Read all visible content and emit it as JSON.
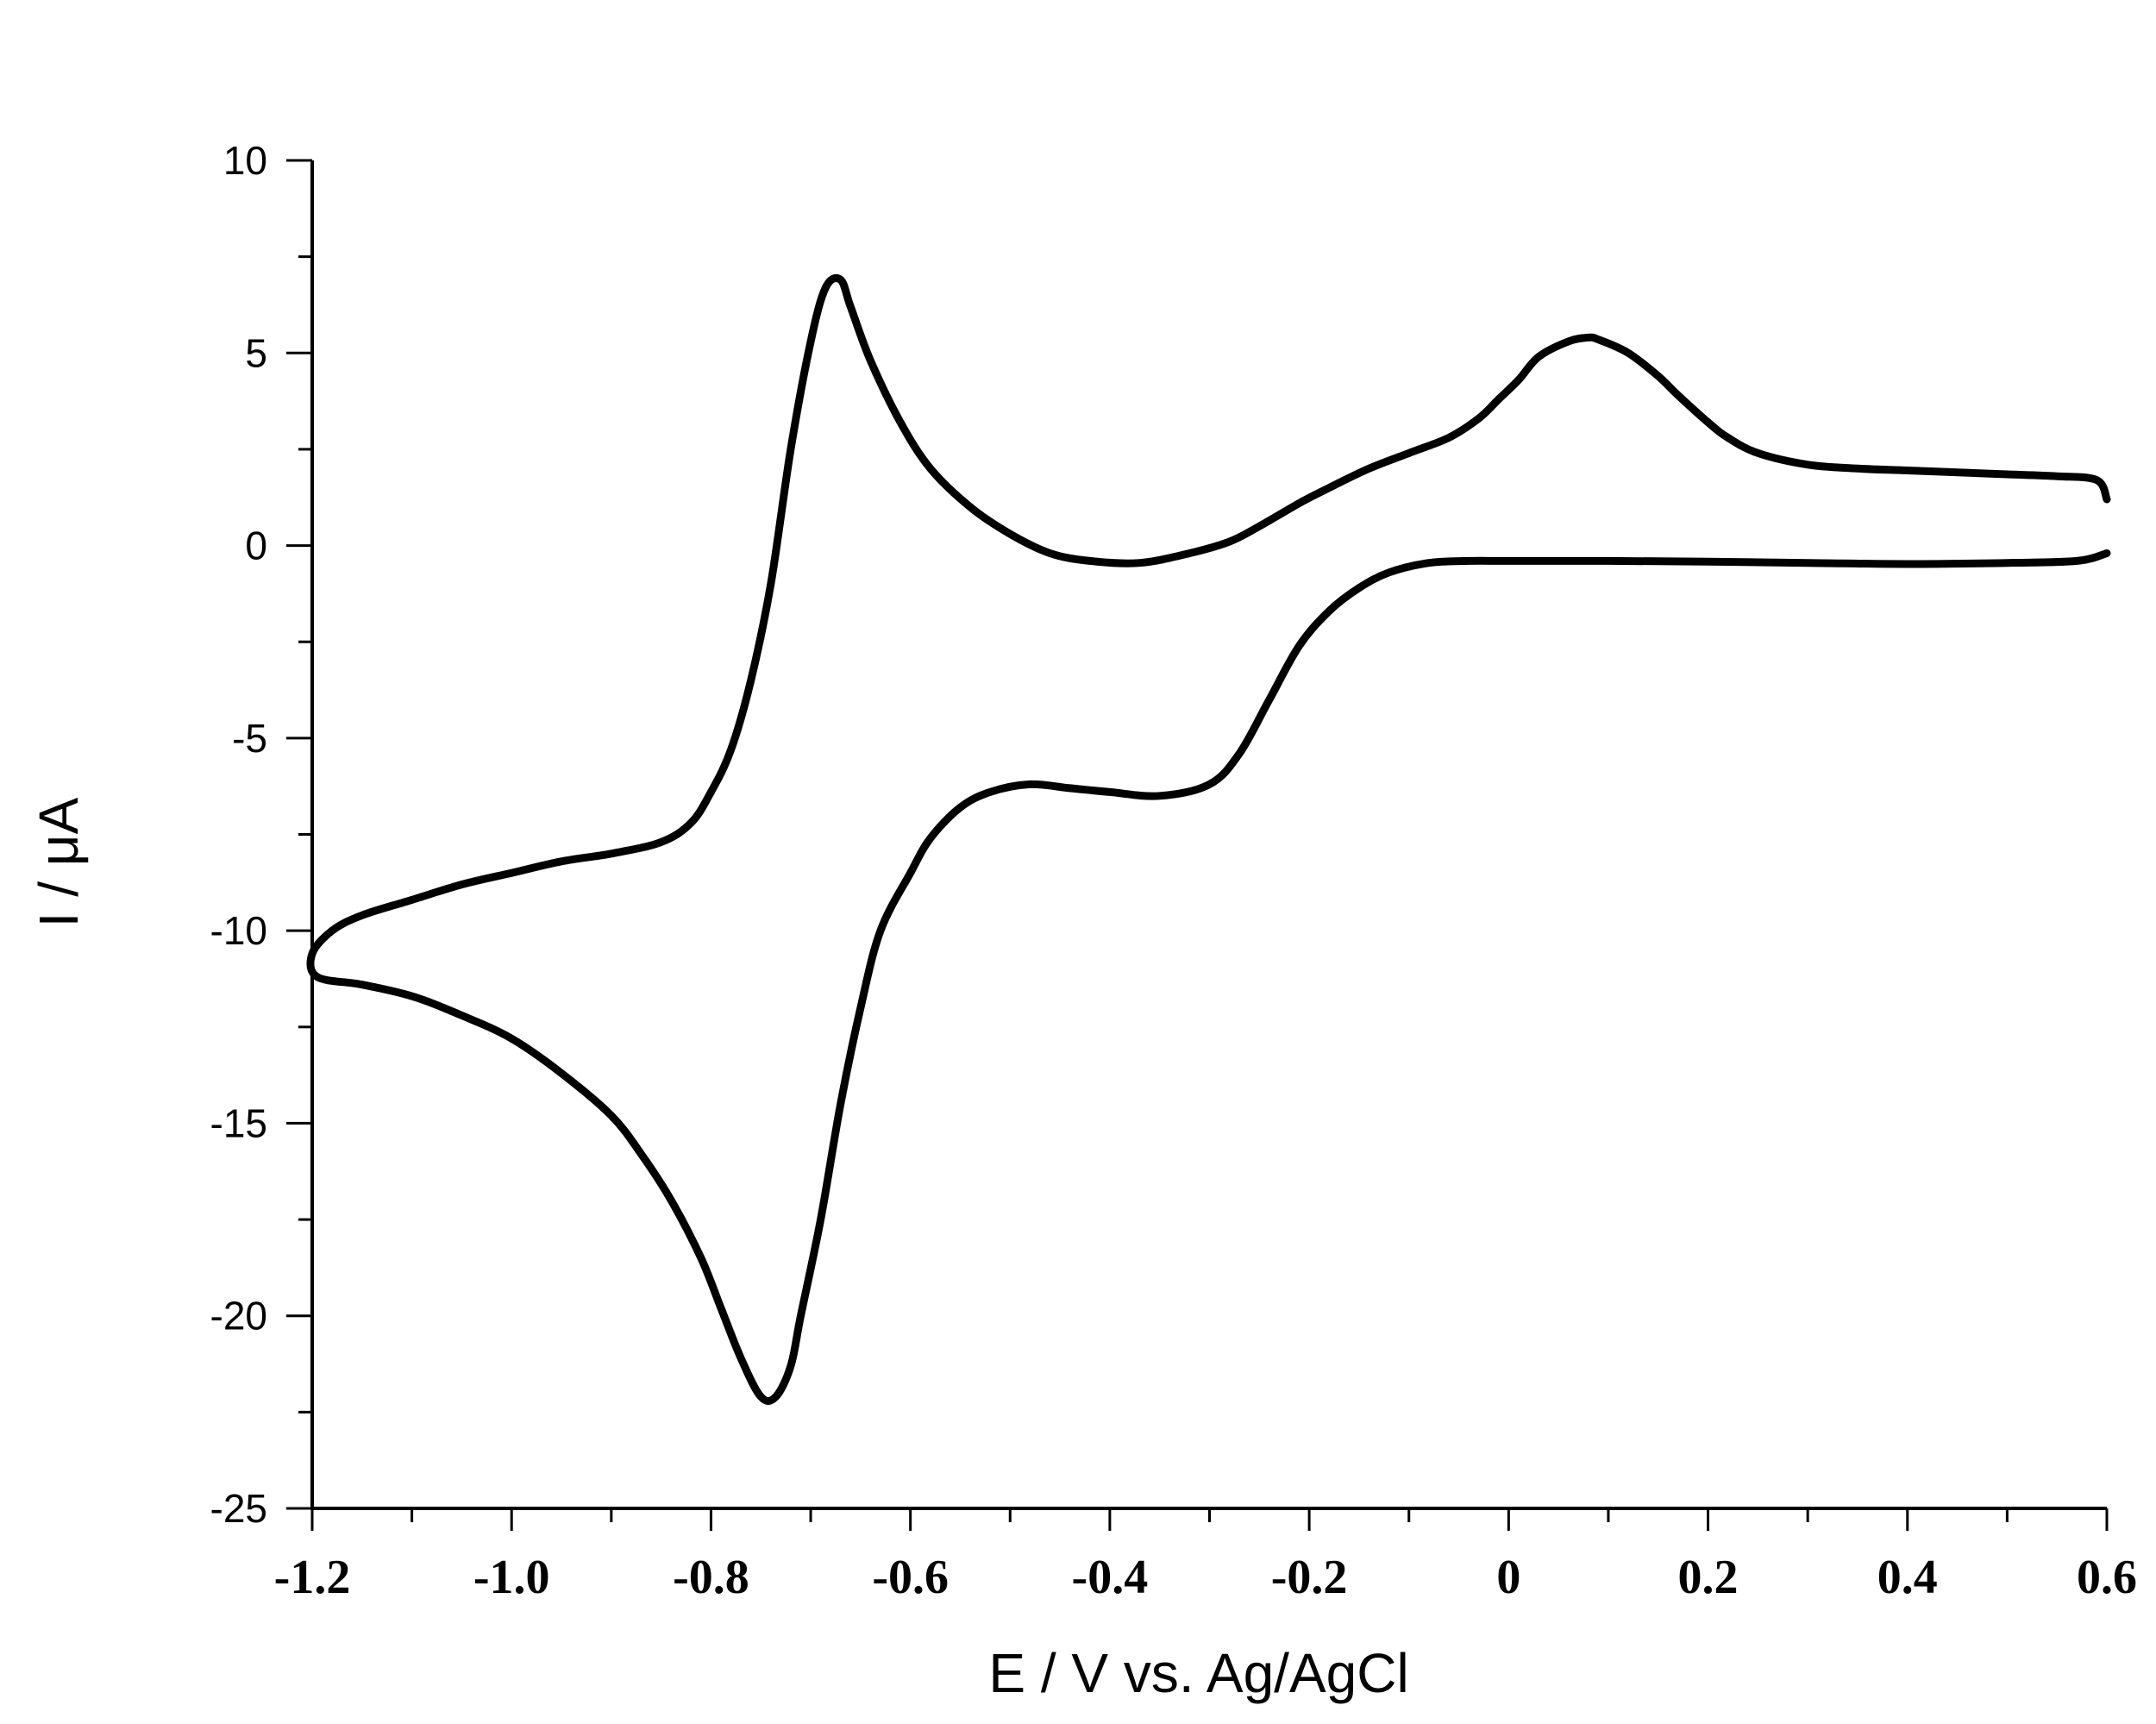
{
  "chart_data": {
    "type": "line",
    "title": "",
    "xlabel": "E / V vs. Ag/AgCl",
    "ylabel": "I / μA",
    "xlim": [
      -1.2,
      0.6
    ],
    "ylim": [
      -25,
      10
    ],
    "x_major_ticks": [
      -1.2,
      -1.0,
      -0.8,
      -0.6,
      -0.4,
      -0.2,
      0,
      0.2,
      0.4,
      0.6
    ],
    "x_tick_labels": [
      "-1.2",
      "-1.0",
      "-0.8",
      "-0.6",
      "-0.4",
      "-0.2",
      "0",
      "0.2",
      "0.4",
      "0.6"
    ],
    "y_major_ticks": [
      -25,
      -20,
      -15,
      -10,
      -5,
      0,
      5,
      10
    ],
    "y_tick_labels": [
      "-25",
      "-20",
      "-15",
      "-10",
      "-5",
      "0",
      "5",
      "10"
    ],
    "grid": false,
    "legend": "none",
    "line_color": "#000000",
    "series": [
      {
        "points": [
          [
            0.6,
            1.2
          ],
          [
            0.59,
            1.7
          ],
          [
            0.55,
            1.8
          ],
          [
            0.5,
            1.85
          ],
          [
            0.45,
            1.9
          ],
          [
            0.4,
            1.95
          ],
          [
            0.35,
            2.0
          ],
          [
            0.3,
            2.1
          ],
          [
            0.25,
            2.4
          ],
          [
            0.22,
            2.8
          ],
          [
            0.2,
            3.2
          ],
          [
            0.17,
            3.9
          ],
          [
            0.15,
            4.4
          ],
          [
            0.12,
            5.0
          ],
          [
            0.09,
            5.35
          ],
          [
            0.08,
            5.4
          ],
          [
            0.06,
            5.3
          ],
          [
            0.03,
            4.9
          ],
          [
            0.01,
            4.3
          ],
          [
            -0.01,
            3.8
          ],
          [
            -0.03,
            3.3
          ],
          [
            -0.06,
            2.8
          ],
          [
            -0.1,
            2.4
          ],
          [
            -0.14,
            2.0
          ],
          [
            -0.18,
            1.5
          ],
          [
            -0.21,
            1.1
          ],
          [
            -0.25,
            0.5
          ],
          [
            -0.28,
            0.1
          ],
          [
            -0.32,
            -0.2
          ],
          [
            -0.37,
            -0.45
          ],
          [
            -0.42,
            -0.4
          ],
          [
            -0.46,
            -0.2
          ],
          [
            -0.5,
            0.3
          ],
          [
            -0.54,
            1.0
          ],
          [
            -0.58,
            2.0
          ],
          [
            -0.61,
            3.2
          ],
          [
            -0.64,
            4.8
          ],
          [
            -0.66,
            6.2
          ],
          [
            -0.67,
            6.9
          ],
          [
            -0.685,
            6.7
          ],
          [
            -0.7,
            5.3
          ],
          [
            -0.72,
            2.5
          ],
          [
            -0.74,
            -1.0
          ],
          [
            -0.76,
            -3.5
          ],
          [
            -0.78,
            -5.3
          ],
          [
            -0.8,
            -6.4
          ],
          [
            -0.82,
            -7.2
          ],
          [
            -0.85,
            -7.7
          ],
          [
            -0.9,
            -8.0
          ],
          [
            -0.95,
            -8.2
          ],
          [
            -1.0,
            -8.5
          ],
          [
            -1.05,
            -8.8
          ],
          [
            -1.1,
            -9.2
          ],
          [
            -1.15,
            -9.6
          ],
          [
            -1.18,
            -10.0
          ],
          [
            -1.2,
            -10.6
          ],
          [
            -1.195,
            -11.2
          ],
          [
            -1.15,
            -11.4
          ],
          [
            -1.1,
            -11.7
          ],
          [
            -1.05,
            -12.2
          ],
          [
            -1.0,
            -12.8
          ],
          [
            -0.95,
            -13.7
          ],
          [
            -0.9,
            -14.8
          ],
          [
            -0.87,
            -15.8
          ],
          [
            -0.84,
            -17.0
          ],
          [
            -0.81,
            -18.5
          ],
          [
            -0.79,
            -19.8
          ],
          [
            -0.77,
            -21.1
          ],
          [
            -0.75,
            -22.1
          ],
          [
            -0.735,
            -22.1
          ],
          [
            -0.72,
            -21.3
          ],
          [
            -0.71,
            -20.0
          ],
          [
            -0.69,
            -17.5
          ],
          [
            -0.67,
            -14.5
          ],
          [
            -0.65,
            -12.0
          ],
          [
            -0.63,
            -10.0
          ],
          [
            -0.6,
            -8.5
          ],
          [
            -0.58,
            -7.6
          ],
          [
            -0.55,
            -6.8
          ],
          [
            -0.52,
            -6.4
          ],
          [
            -0.48,
            -6.2
          ],
          [
            -0.44,
            -6.3
          ],
          [
            -0.4,
            -6.4
          ],
          [
            -0.35,
            -6.5
          ],
          [
            -0.3,
            -6.2
          ],
          [
            -0.27,
            -5.4
          ],
          [
            -0.24,
            -4.0
          ],
          [
            -0.21,
            -2.6
          ],
          [
            -0.18,
            -1.7
          ],
          [
            -0.15,
            -1.1
          ],
          [
            -0.12,
            -0.7
          ],
          [
            -0.08,
            -0.45
          ],
          [
            -0.04,
            -0.4
          ],
          [
            0.0,
            -0.4
          ],
          [
            0.1,
            -0.4
          ],
          [
            0.2,
            -0.42
          ],
          [
            0.3,
            -0.45
          ],
          [
            0.4,
            -0.48
          ],
          [
            0.5,
            -0.45
          ],
          [
            0.57,
            -0.4
          ],
          [
            0.6,
            -0.2
          ]
        ]
      }
    ]
  }
}
